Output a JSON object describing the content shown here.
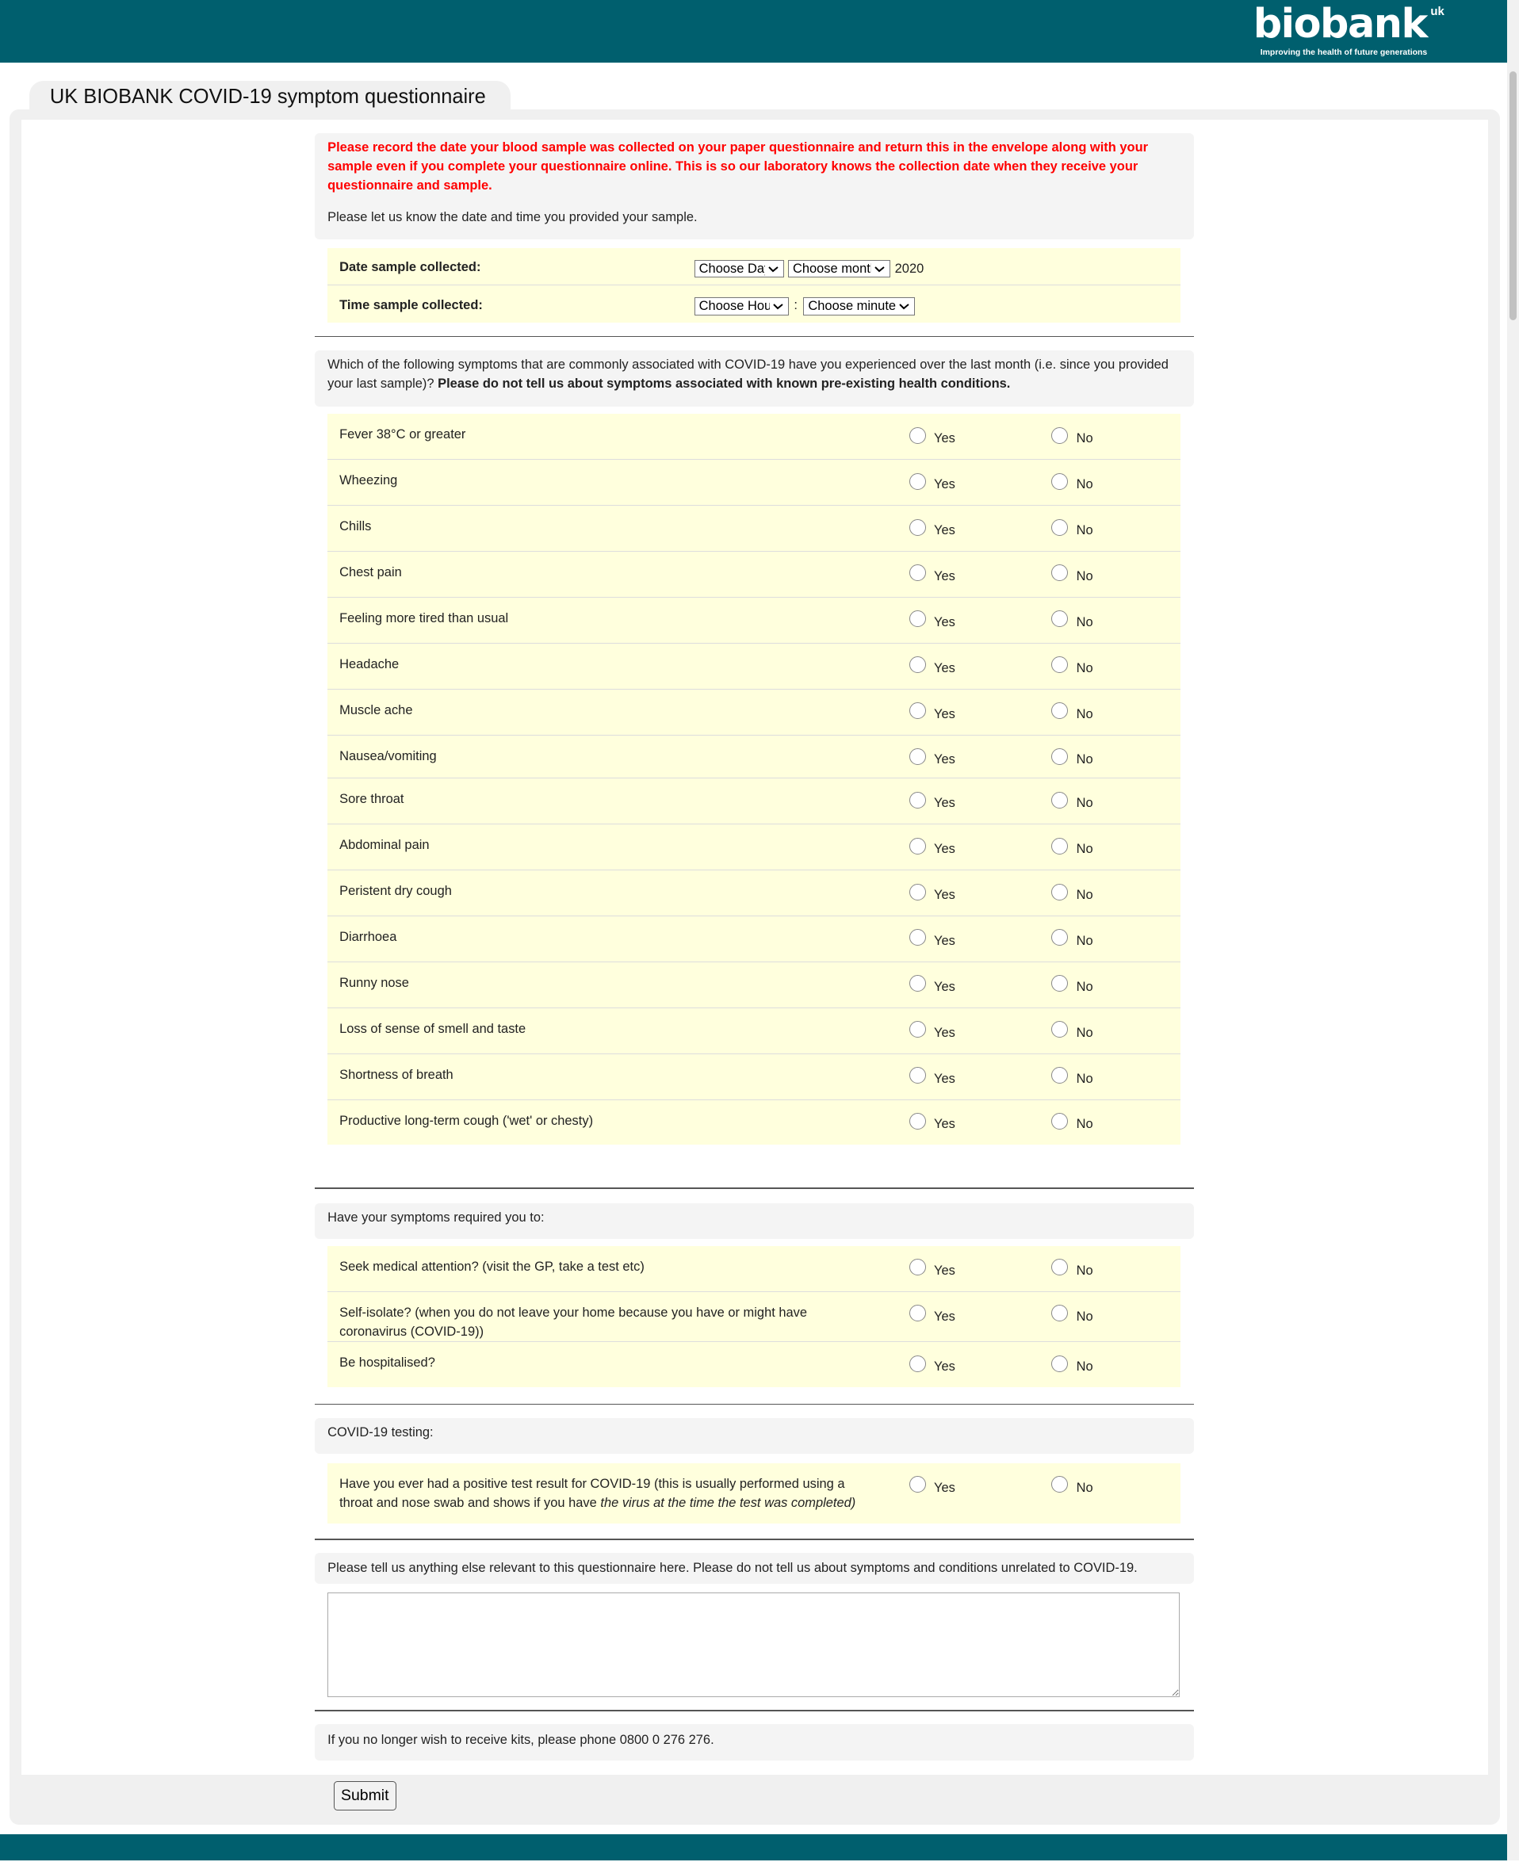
{
  "brand": {
    "logo_text": "biobank",
    "logo_suffix": "uk",
    "tagline": "Improving the health of future generations",
    "color": "#005f6e"
  },
  "page_title": "UK BIOBANK COVID-19 symptom questionnaire",
  "intro": {
    "warning": "Please record the date your blood sample was collected on your paper questionnaire and return this in the envelope along with your sample even if you complete your questionnaire online. This is so our laboratory knows the collection date when they receive your questionnaire and sample.",
    "prompt": "Please let us know the date and time you provided your sample."
  },
  "sample": {
    "date_label": "Date sample collected:",
    "day_select": "Choose Day",
    "month_select": "Choose month",
    "year": "2020",
    "time_label": "Time sample collected:",
    "hour_select": "Choose Hour",
    "separator": ":",
    "minutes_select": "Choose minutes"
  },
  "symptoms": {
    "question": "Which of the following symptoms that are commonly associated with COVID-19 have you experienced over the last month (i.e. since you provided your last sample)?",
    "question_bold": "Please do not tell us about symptoms associated with known pre-existing health conditions.",
    "items": [
      "Fever 38°C or greater",
      "Wheezing",
      "Chills",
      "Chest pain",
      "Feeling more tired than usual",
      "Headache",
      "Muscle ache",
      "Nausea/vomiting",
      "Sore throat",
      "Abdominal pain",
      "Peristent dry cough",
      "Diarrhoea",
      "Runny nose",
      "Loss of sense of smell and taste",
      "Shortness of breath",
      "Productive long-term cough ('wet' or chesty)"
    ]
  },
  "required": {
    "question": "Have your symptoms required you to:",
    "items": [
      "Seek medical attention? (visit the GP, take a test etc)",
      "Self-isolate? (when you do not leave your home because you have or might have coronavirus (COVID-19))",
      "Be hospitalised?"
    ]
  },
  "testing": {
    "question": "COVID-19 testing:",
    "item_start": "Have you ever had a positive test result for COVID-19 (this is usually performed using a throat and nose swab and shows if you have ",
    "item_italic": "the virus at the time the test was completed)"
  },
  "yes_label": "Yes",
  "no_label": "No",
  "other": {
    "prompt": "Please tell us anything else relevant to this questionnaire here. Please do not tell us about symptoms and conditions unrelated to COVID-19.",
    "value": ""
  },
  "kits": "If you no longer wish to receive kits, please phone 0800 0 276 276.",
  "submit_label": "Submit"
}
